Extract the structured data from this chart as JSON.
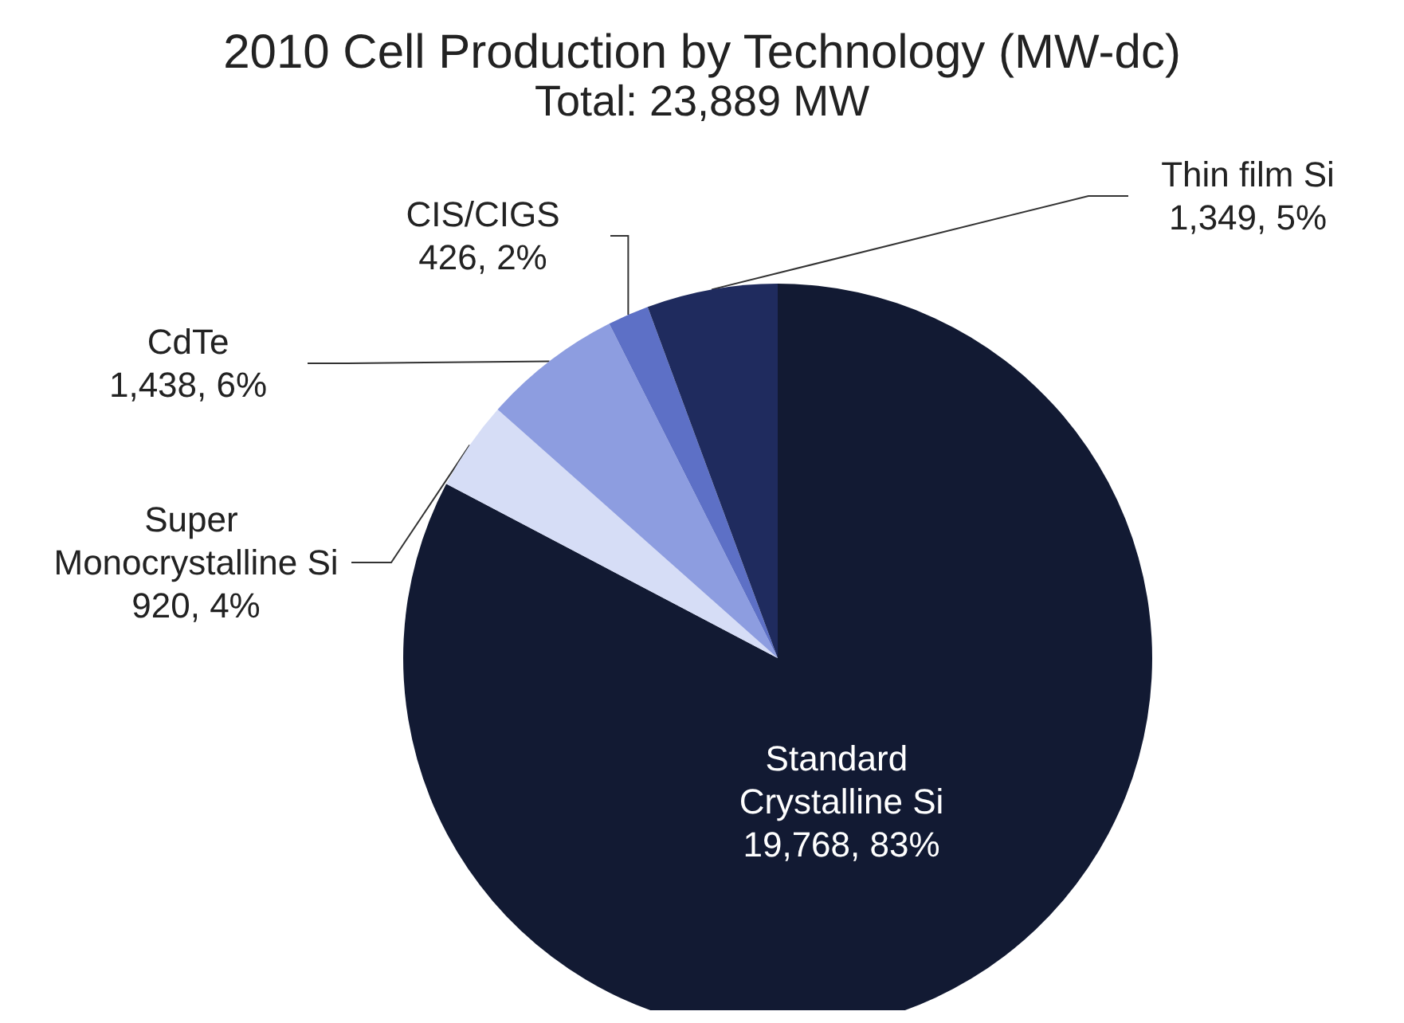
{
  "chart_data": {
    "type": "pie",
    "title": "2010 Cell Production by Technology (MW-dc)",
    "subtitle": "Total: 23,889 MW",
    "categories": [
      "Standard Crystalline Si",
      "Super Monocrystalline Si",
      "CdTe",
      "CIS/CIGS",
      "Thin film Si"
    ],
    "values": [
      19768,
      920,
      1438,
      426,
      1349
    ],
    "colors": [
      "#121a33",
      "#d6ddf6",
      "#8d9de0",
      "#5d70c6",
      "#1f2b5e"
    ],
    "value_labels": [
      "19,768, 83%",
      "920, 4%",
      "1,438, 6%",
      "426, 2%",
      "1,349, 5%"
    ],
    "legend": false
  }
}
